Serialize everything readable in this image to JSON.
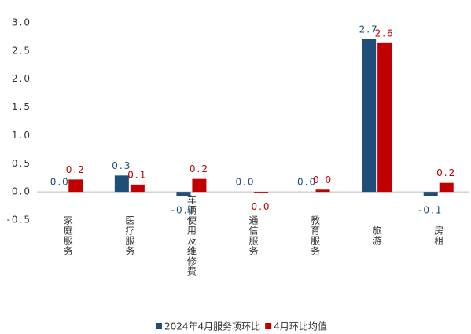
{
  "chart_data": {
    "type": "bar",
    "categories": [
      "家庭服务",
      "医疗服务",
      "车辆使用及维修费",
      "通信服务",
      "教育服务",
      "旅游",
      "房租"
    ],
    "series": [
      {
        "name": "2024年4月服务项环比",
        "color": "#1f4e79",
        "values": [
          0,
          0.29,
          -0.08,
          0,
          0,
          2.71,
          -0.08
        ],
        "value_labels": [
          "0.0",
          "0.3",
          "-0.1",
          "0.0",
          "0.0",
          "2.7",
          "-0.1"
        ]
      },
      {
        "name": "4月环比均值",
        "color": "#c00000",
        "values": [
          0.22,
          0.13,
          0.23,
          -0.02,
          0.04,
          2.64,
          0.16
        ],
        "value_labels": [
          "0.2",
          "0.1",
          "0.2",
          "0.0",
          "0.0",
          "2.6",
          "0.2"
        ]
      }
    ],
    "ylim": [
      -0.5,
      3.0
    ],
    "yticks": [
      -0.5,
      {
        "value": 0,
        "label": "0.0"
      },
      0.5,
      {
        "value": 1,
        "label": "1.0"
      },
      1.5,
      {
        "value": 2,
        "label": "2.0"
      },
      2.5,
      {
        "value": 3,
        "label": "3.0"
      }
    ],
    "grid": false
  }
}
